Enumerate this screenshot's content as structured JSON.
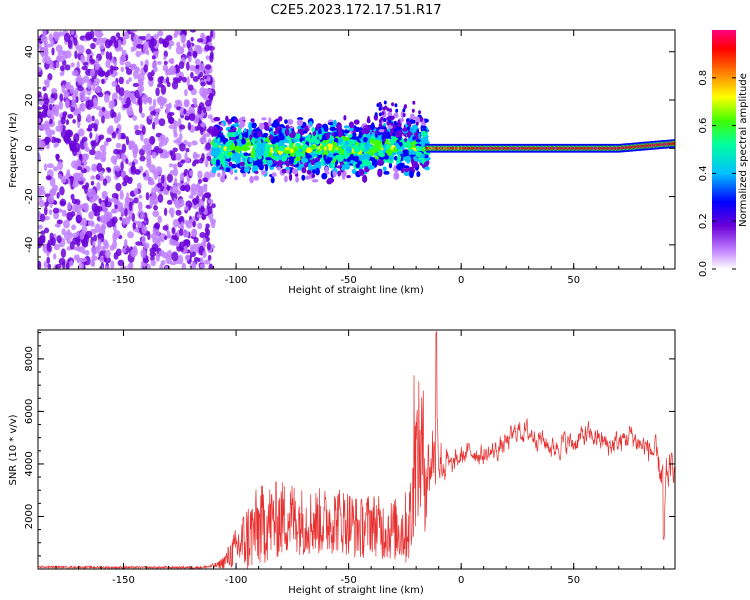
{
  "title": "C2E5.2023.172.17.51.R17",
  "chart_data": [
    {
      "type": "heatmap",
      "xlabel": "Height of straight line (km)",
      "ylabel": "Frequency (Hz)",
      "xlim": [
        -188,
        95
      ],
      "ylim": [
        -50,
        49
      ],
      "xticks": [
        -150,
        -100,
        -50,
        0,
        50
      ],
      "yticks": [
        -40,
        -20,
        0,
        20,
        40
      ],
      "colorbar": {
        "label": "Normalized spectral amplitude",
        "range": [
          0,
          1
        ],
        "ticks": [
          0.0,
          0.2,
          0.4,
          0.6,
          0.8
        ],
        "colormap": [
          "#ffffff",
          "#c080ff",
          "#6a00d8",
          "#0000ff",
          "#00c0ff",
          "#00ffa0",
          "#40ff00",
          "#ffff00",
          "#ff8000",
          "#ff0000",
          "#ff0080"
        ]
      },
      "regions": [
        {
          "x_range": [
            -188,
            -110
          ],
          "freq_spread": [
            -50,
            49
          ],
          "amplitude": "low, scattered noise"
        },
        {
          "x_range": [
            -110,
            -15
          ],
          "freq_spread": [
            -15,
            15
          ],
          "amplitude": "medium, clustered near 0 Hz"
        },
        {
          "x_range": [
            -15,
            95
          ],
          "freq_center": 0,
          "amplitude": "high, narrow band at ~0 Hz rising to ~2 Hz"
        }
      ]
    },
    {
      "type": "line",
      "xlabel": "Height of straight line (km)",
      "ylabel": "SNR (10 * v/v)",
      "xlim": [
        -188,
        95
      ],
      "ylim": [
        0,
        9100
      ],
      "xticks": [
        -150,
        -100,
        -50,
        0,
        50
      ],
      "yticks": [
        2000,
        4000,
        6000,
        8000
      ],
      "series": [
        {
          "color": "#e83030",
          "x": [
            -188,
            -170,
            -150,
            -130,
            -115,
            -108,
            -105,
            -100,
            -95,
            -90,
            -85,
            -80,
            -75,
            -70,
            -65,
            -60,
            -55,
            -50,
            -45,
            -40,
            -35,
            -30,
            -25,
            -22,
            -20,
            -18,
            -15,
            -13,
            -11,
            -9,
            -5,
            0,
            5,
            10,
            15,
            20,
            25,
            30,
            35,
            40,
            45,
            50,
            55,
            60,
            65,
            70,
            75,
            80,
            85,
            88,
            90,
            95
          ],
          "values": [
            80,
            70,
            60,
            60,
            60,
            150,
            300,
            800,
            1200,
            1600,
            1800,
            1900,
            2000,
            1800,
            1800,
            1800,
            1900,
            1800,
            1500,
            1800,
            1500,
            1500,
            1500,
            2000,
            4200,
            4500,
            3800,
            4300,
            5000,
            4200,
            3800,
            4300,
            4500,
            4300,
            4500,
            4800,
            5300,
            5200,
            5000,
            4600,
            4800,
            4800,
            5100,
            5000,
            4700,
            4800,
            5100,
            4700,
            4500,
            3800,
            3500,
            4000
          ],
          "amplitude": [
            40,
            40,
            40,
            40,
            40,
            120,
            300,
            800,
            1400,
            1600,
            1500,
            1500,
            1400,
            1300,
            1300,
            1300,
            1300,
            1300,
            1200,
            1200,
            1200,
            1200,
            1400,
            1800,
            2500,
            3000,
            2500,
            2500,
            3500,
            2000,
            800,
            700,
            700,
            700,
            700,
            700,
            700,
            800,
            700,
            700,
            800,
            700,
            800,
            700,
            800,
            800,
            800,
            800,
            1000,
            1200,
            1400,
            800
          ]
        }
      ]
    }
  ]
}
